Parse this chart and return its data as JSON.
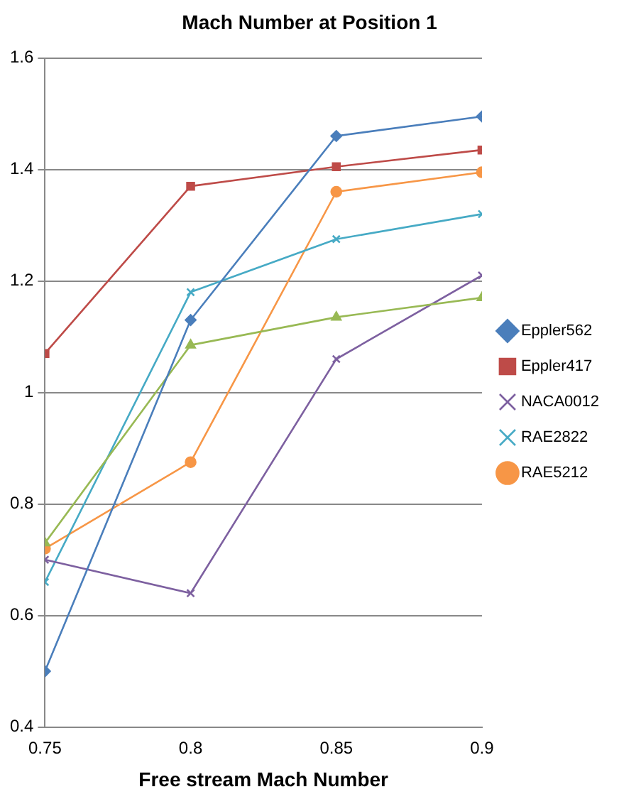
{
  "chart_data": {
    "type": "line",
    "title": "Mach Number at Position 1",
    "xlabel": "Free stream Mach Number",
    "x": [
      0.75,
      0.8,
      0.85,
      0.9
    ],
    "xlim": [
      0.75,
      0.9
    ],
    "xticks": [
      0.75,
      0.8,
      0.85,
      0.9
    ],
    "ylim": [
      0.4,
      1.6
    ],
    "yticks": [
      0.4,
      0.6,
      0.8,
      1,
      1.2,
      1.4,
      1.6
    ],
    "grid": "y",
    "legend": "right",
    "series": [
      {
        "name": "Eppler562",
        "color": "#4a7ebb",
        "marker": "diamond",
        "values": [
          0.5,
          1.13,
          1.46,
          1.495
        ]
      },
      {
        "name": "Eppler417",
        "color": "#be4b48",
        "marker": "square",
        "values": [
          1.07,
          1.37,
          1.405,
          1.435
        ]
      },
      {
        "color": "#98b954",
        "marker": "triangle",
        "values": [
          0.73,
          1.085,
          1.135,
          1.17
        ]
      },
      {
        "name": "NACA0012",
        "color": "#7d60a0",
        "marker": "cross",
        "values": [
          0.7,
          0.64,
          1.06,
          1.21
        ]
      },
      {
        "name": "RAE2822",
        "color": "#46aac5",
        "marker": "cross",
        "values": [
          0.66,
          1.18,
          1.275,
          1.32
        ]
      },
      {
        "name": "RAE5212",
        "color": "#f79646",
        "marker": "circle",
        "values": [
          0.72,
          0.875,
          1.36,
          1.395
        ]
      }
    ]
  }
}
